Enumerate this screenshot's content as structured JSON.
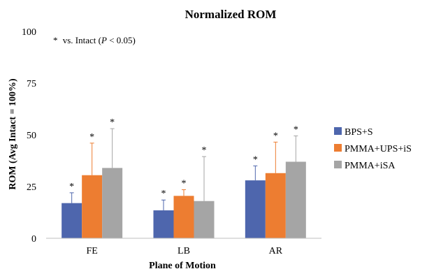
{
  "chart_data": {
    "type": "bar",
    "title": "Normalized ROM",
    "xlabel": "Plane of Motion",
    "ylabel": "ROM (Avg Intact = 100%)",
    "ylim": [
      0,
      100
    ],
    "yticks": [
      "0",
      "25",
      "50",
      "75",
      "100"
    ],
    "categories": [
      "FE",
      "LB",
      "AR"
    ],
    "series": [
      {
        "name": "BPS+S",
        "color": "#4e66ad",
        "values": [
          17,
          13.5,
          28
        ],
        "errors": [
          5,
          5,
          7
        ],
        "significant": [
          true,
          true,
          true
        ]
      },
      {
        "name": "PMMA+UPS+iS",
        "color": "#ed7d31",
        "values": [
          30.5,
          20.5,
          31.5
        ],
        "errors": [
          15.5,
          3,
          15
        ],
        "significant": [
          true,
          true,
          true
        ]
      },
      {
        "name": "PMMA+iSA",
        "color": "#a5a5a5",
        "values": [
          34,
          18,
          37
        ],
        "errors": [
          19,
          21.5,
          12.5
        ],
        "significant": [
          true,
          true,
          true
        ]
      }
    ],
    "annotation": {
      "star": "*",
      "prefix": "vs. Intact (",
      "p_symbol": "P",
      "suffix": " < 0.05)"
    },
    "grid": false,
    "legend": "right"
  }
}
